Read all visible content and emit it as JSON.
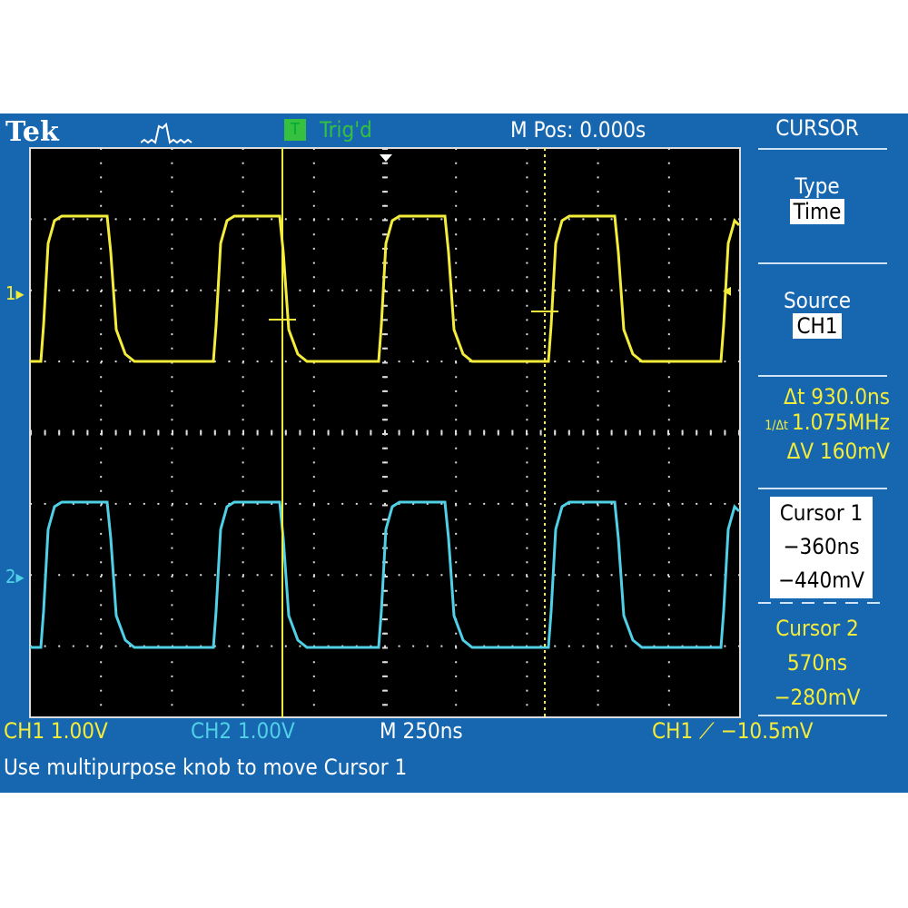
{
  "header": {
    "brand": "Tek",
    "acq_icon": "acquire-waveform-icon",
    "trig_badge": "T",
    "trig_status": "Trig'd",
    "position": "M Pos: 0.000s"
  },
  "menu": {
    "title": "CURSOR",
    "type_label": "Type",
    "type_value": "Time",
    "source_label": "Source",
    "source_value": "CH1",
    "delta_t": "930.0ns",
    "inv_delta_t": "1.075MHz",
    "delta_v": "160mV",
    "cursor1": {
      "label": "Cursor 1",
      "time": "−360ns",
      "volt": "−440mV"
    },
    "cursor2": {
      "label": "Cursor 2",
      "time": "570ns",
      "volt": "−280mV"
    }
  },
  "markers": {
    "ch1": "1",
    "ch2": "2"
  },
  "status": {
    "ch1": "CH1  1.00V",
    "ch2": "CH2  1.00V",
    "timebase": "M 250ns",
    "trigger_src": "CH1",
    "trigger_level": "−10.5mV"
  },
  "message": "Use multipurpose knob to move Cursor 1",
  "colors": {
    "ch1": "#f4ec3a",
    "ch2": "#4fd0e6",
    "background": "#1767b0",
    "trig": "#35c13f"
  }
}
